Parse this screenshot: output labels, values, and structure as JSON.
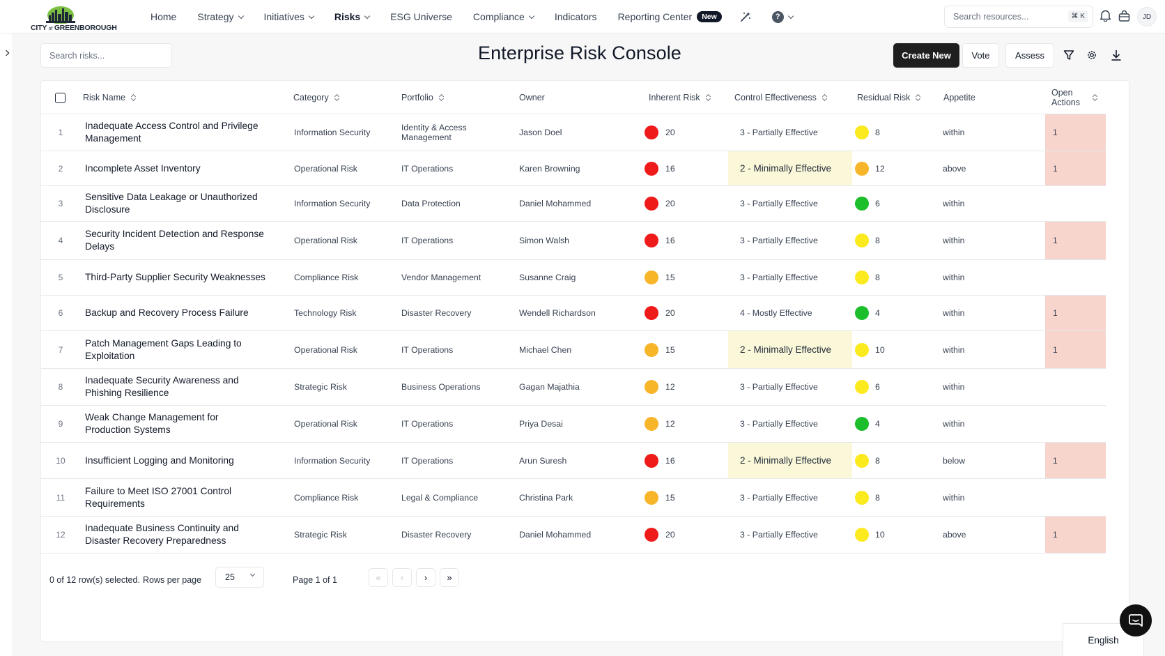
{
  "brand": {
    "logo_text_a": "CITY",
    "logo_text_of": "of",
    "logo_text_b": "GREENBOROUGH"
  },
  "nav": {
    "items": [
      {
        "label": "Home",
        "dropdown": false,
        "active": false
      },
      {
        "label": "Strategy",
        "dropdown": true,
        "active": false
      },
      {
        "label": "Initiatives",
        "dropdown": true,
        "active": false
      },
      {
        "label": "Risks",
        "dropdown": true,
        "active": true
      },
      {
        "label": "ESG Universe",
        "dropdown": false,
        "active": false
      },
      {
        "label": "Compliance",
        "dropdown": true,
        "active": false
      },
      {
        "label": "Indicators",
        "dropdown": false,
        "active": false
      },
      {
        "label": "Reporting Center",
        "dropdown": false,
        "active": false
      }
    ],
    "new_badge": "New",
    "help_glyph": "?"
  },
  "top_search": {
    "placeholder": "Search resources...",
    "shortcut": "⌘ K"
  },
  "user": {
    "initials": "JD"
  },
  "risk_search": {
    "placeholder": "Search risks..."
  },
  "page": {
    "title": "Enterprise Risk Console"
  },
  "actions": {
    "create_new": "Create New",
    "vote": "Vote",
    "assess": "Assess"
  },
  "icons": [
    "magic-wand-icon",
    "help-icon",
    "bell-icon",
    "shopping-bag-icon",
    "chevron-right-icon",
    "filter-icon",
    "settings-gear-icon",
    "download-icon",
    "chat-icon"
  ],
  "colors": {
    "red": "#ef1a1a",
    "orange": "#f7b52a",
    "yellow": "#fbea1e",
    "green": "#1cbf2b",
    "highlight_control": "#fbf8da",
    "highlight_actions": "#f7d5cc"
  },
  "table": {
    "columns": {
      "risk_name": "Risk Name",
      "category": "Category",
      "portfolio": "Portfolio",
      "owner": "Owner",
      "inherent_risk": "Inherent Risk",
      "control_effectiveness": "Control Effectiveness",
      "residual_risk": "Residual Risk",
      "appetite": "Appetite",
      "open_actions_1": "Open",
      "open_actions_2": "Actions"
    },
    "rows": [
      {
        "idx": "1",
        "name": "Inadequate Access Control and Privilege Management",
        "category": "Information Security",
        "portfolio": "Identity & Access Management",
        "owner": "Jason Doel",
        "inherent": "20",
        "inherent_color": "red",
        "control": "3 - Partially Effective",
        "control_hl": false,
        "residual": "8",
        "residual_color": "yellow",
        "appetite": "within",
        "actions": "1"
      },
      {
        "idx": "2",
        "name": "Incomplete Asset Inventory",
        "category": "Operational Risk",
        "portfolio": "IT Operations",
        "owner": "Karen Browning",
        "inherent": "16",
        "inherent_color": "red",
        "control": "2 - Minimally Effective",
        "control_hl": true,
        "residual": "12",
        "residual_color": "orange",
        "appetite": "above",
        "actions": "1"
      },
      {
        "idx": "3",
        "name": "Sensitive Data Leakage or Unauthorized Disclosure",
        "category": "Information Security",
        "portfolio": "Data Protection",
        "owner": "Daniel Mohammed",
        "inherent": "20",
        "inherent_color": "red",
        "control": "3 - Partially Effective",
        "control_hl": false,
        "residual": "6",
        "residual_color": "green",
        "appetite": "within",
        "actions": ""
      },
      {
        "idx": "4",
        "name": "Security Incident Detection and Response Delays",
        "category": "Operational Risk",
        "portfolio": "IT Operations",
        "owner": "Simon Walsh",
        "inherent": "16",
        "inherent_color": "red",
        "control": "3 - Partially Effective",
        "control_hl": false,
        "residual": "8",
        "residual_color": "yellow",
        "appetite": "within",
        "actions": "1"
      },
      {
        "idx": "5",
        "name": "Third-Party Supplier Security Weaknesses",
        "category": "Compliance Risk",
        "portfolio": "Vendor Management",
        "owner": "Susanne Craig",
        "inherent": "15",
        "inherent_color": "orange",
        "control": "3 - Partially Effective",
        "control_hl": false,
        "residual": "8",
        "residual_color": "yellow",
        "appetite": "within",
        "actions": ""
      },
      {
        "idx": "6",
        "name": "Backup and Recovery Process Failure",
        "category": "Technology Risk",
        "portfolio": "Disaster Recovery",
        "owner": "Wendell Richardson",
        "inherent": "20",
        "inherent_color": "red",
        "control": "4 - Mostly Effective",
        "control_hl": false,
        "residual": "4",
        "residual_color": "green",
        "appetite": "within",
        "actions": "1"
      },
      {
        "idx": "7",
        "name": "Patch Management Gaps Leading to Exploitation",
        "category": "Operational Risk",
        "portfolio": "IT Operations",
        "owner": "Michael Chen",
        "inherent": "15",
        "inherent_color": "orange",
        "control": "2 - Minimally Effective",
        "control_hl": true,
        "residual": "10",
        "residual_color": "yellow",
        "appetite": "within",
        "actions": "1"
      },
      {
        "idx": "8",
        "name": "Inadequate Security Awareness and Phishing Resilience",
        "category": "Strategic Risk",
        "portfolio": "Business Operations",
        "owner": "Gagan Majathia",
        "inherent": "12",
        "inherent_color": "orange",
        "control": "3 - Partially Effective",
        "control_hl": false,
        "residual": "6",
        "residual_color": "yellow",
        "appetite": "within",
        "actions": ""
      },
      {
        "idx": "9",
        "name": "Weak Change Management for Production Systems",
        "category": "Operational Risk",
        "portfolio": "IT Operations",
        "owner": "Priya Desai",
        "inherent": "12",
        "inherent_color": "orange",
        "control": "3 - Partially Effective",
        "control_hl": false,
        "residual": "4",
        "residual_color": "green",
        "appetite": "within",
        "actions": ""
      },
      {
        "idx": "10",
        "name": "Insufficient Logging and Monitoring",
        "category": "Information Security",
        "portfolio": "IT Operations",
        "owner": "Arun Suresh",
        "inherent": "16",
        "inherent_color": "red",
        "control": "2 - Minimally Effective",
        "control_hl": true,
        "residual": "8",
        "residual_color": "yellow",
        "appetite": "below",
        "actions": "1"
      },
      {
        "idx": "11",
        "name": "Failure to Meet ISO 27001 Control Requirements",
        "category": "Compliance Risk",
        "portfolio": "Legal & Compliance",
        "owner": "Christina Park",
        "inherent": "15",
        "inherent_color": "orange",
        "control": "3 - Partially Effective",
        "control_hl": false,
        "residual": "8",
        "residual_color": "yellow",
        "appetite": "within",
        "actions": ""
      },
      {
        "idx": "12",
        "name": "Inadequate Business Continuity and Disaster Recovery Preparedness",
        "category": "Strategic Risk",
        "portfolio": "Disaster Recovery",
        "owner": "Daniel Mohammed",
        "inherent": "20",
        "inherent_color": "red",
        "control": "3 - Partially Effective",
        "control_hl": false,
        "residual": "10",
        "residual_color": "yellow",
        "appetite": "above",
        "actions": "1"
      }
    ]
  },
  "footer": {
    "selection": "0 of 12 row(s) selected.",
    "rows_per_page_label": "Rows per page",
    "rows_per_page_value": "25",
    "page_info": "Page 1 of 1",
    "first": "«",
    "prev": "‹",
    "next": "›",
    "last": "»"
  },
  "language": "English"
}
